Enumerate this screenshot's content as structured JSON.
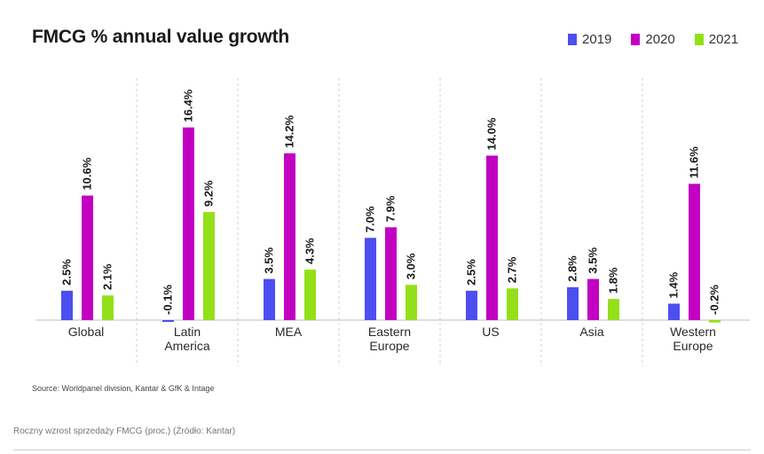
{
  "chart_data": {
    "type": "bar",
    "title": "FMCG % annual value growth",
    "categories": [
      [
        "Global"
      ],
      [
        "Latin",
        "America"
      ],
      [
        "MEA"
      ],
      [
        "Eastern",
        "Europe"
      ],
      [
        "US"
      ],
      [
        "Asia"
      ],
      [
        "Western",
        "Europe"
      ]
    ],
    "series": [
      {
        "name": "2019",
        "color": "#4d4ef0",
        "values": [
          2.5,
          -0.1,
          3.5,
          7.0,
          2.5,
          2.8,
          1.4
        ],
        "labels": [
          "2.5%",
          "-0.1%",
          "3.5%",
          "7.0%",
          "2.5%",
          "2.8%",
          "1.4%"
        ]
      },
      {
        "name": "2020",
        "color": "#c200c2",
        "values": [
          10.6,
          16.4,
          14.2,
          7.9,
          14.0,
          3.5,
          11.6
        ],
        "labels": [
          "10.6%",
          "16.4%",
          "14.2%",
          "7.9%",
          "14.0%",
          "3.5%",
          "11.6%"
        ]
      },
      {
        "name": "2021",
        "color": "#93e01a",
        "values": [
          2.1,
          9.2,
          4.3,
          3.0,
          2.7,
          1.8,
          -0.2
        ],
        "labels": [
          "2.1%",
          "9.2%",
          "4.3%",
          "3.0%",
          "2.7%",
          "1.8%",
          "-0.2%"
        ]
      }
    ],
    "legend_position": "top-right",
    "grid": false,
    "separators": "dashed-vertical"
  },
  "source": "Source: Worldpanel division, Kantar & GfK & Intage",
  "caption": "Roczny wzrost sprzedaży FMCG (proc.) (Źródło: Kantar)"
}
